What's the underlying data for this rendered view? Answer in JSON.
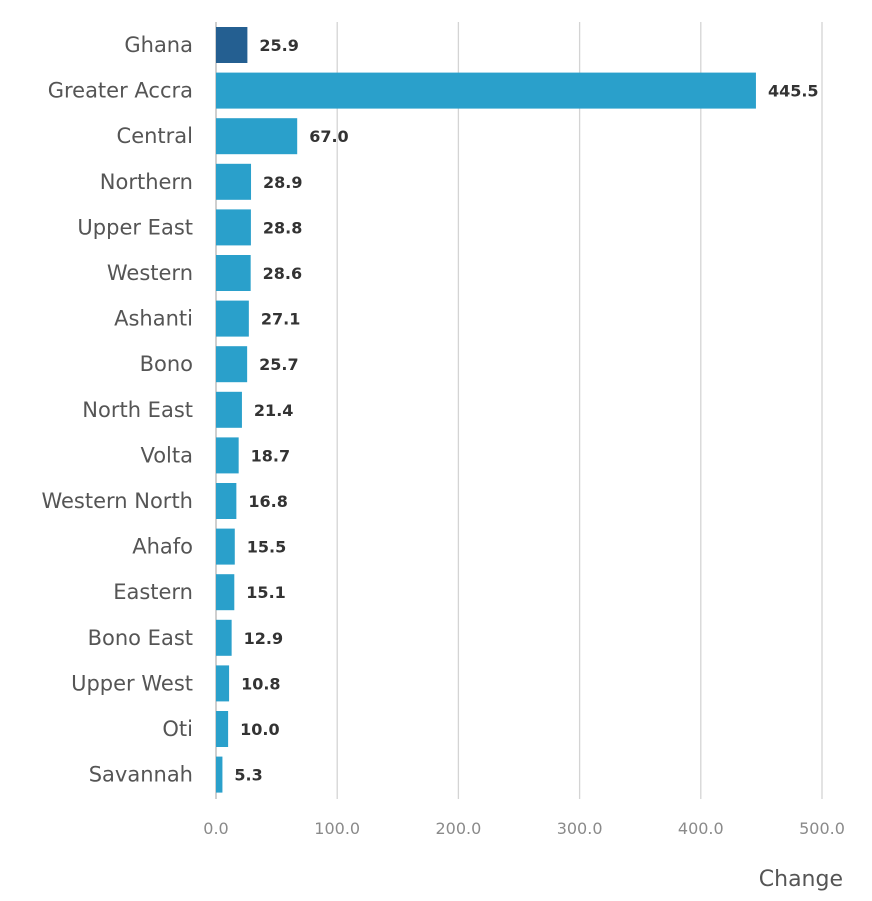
{
  "chart_data": {
    "type": "bar",
    "orientation": "horizontal",
    "title": "",
    "xlabel": "Change",
    "ylabel": "",
    "xlim": [
      0,
      500
    ],
    "xticks": [
      0,
      100,
      200,
      300,
      400,
      500
    ],
    "xtick_labels": [
      "0.0",
      "100.0",
      "200.0",
      "300.0",
      "400.0",
      "500.0"
    ],
    "grid": "vertical",
    "categories": [
      "Ghana",
      "Greater Accra",
      "Central",
      "Northern",
      "Upper East",
      "Western",
      "Ashanti",
      "Bono",
      "North East",
      "Volta",
      "Western North",
      "Ahafo",
      "Eastern",
      "Bono East",
      "Upper West",
      "Oti",
      "Savannah"
    ],
    "values": [
      25.9,
      445.5,
      67.0,
      28.9,
      28.8,
      28.6,
      27.1,
      25.7,
      21.4,
      18.7,
      16.8,
      15.5,
      15.1,
      12.9,
      10.8,
      10.0,
      5.3
    ],
    "value_labels": [
      "25.9",
      "445.5",
      "67.0",
      "28.9",
      "28.8",
      "28.6",
      "27.1",
      "25.7",
      "21.4",
      "18.7",
      "16.8",
      "15.5",
      "15.1",
      "12.9",
      "10.8",
      "10.0",
      "5.3"
    ],
    "colors": {
      "highlight": "#245f91",
      "bar": "#2aa0cb",
      "grid": "#d4d4d4",
      "axis": "#bfbfbf"
    },
    "highlight_category": "Ghana"
  }
}
